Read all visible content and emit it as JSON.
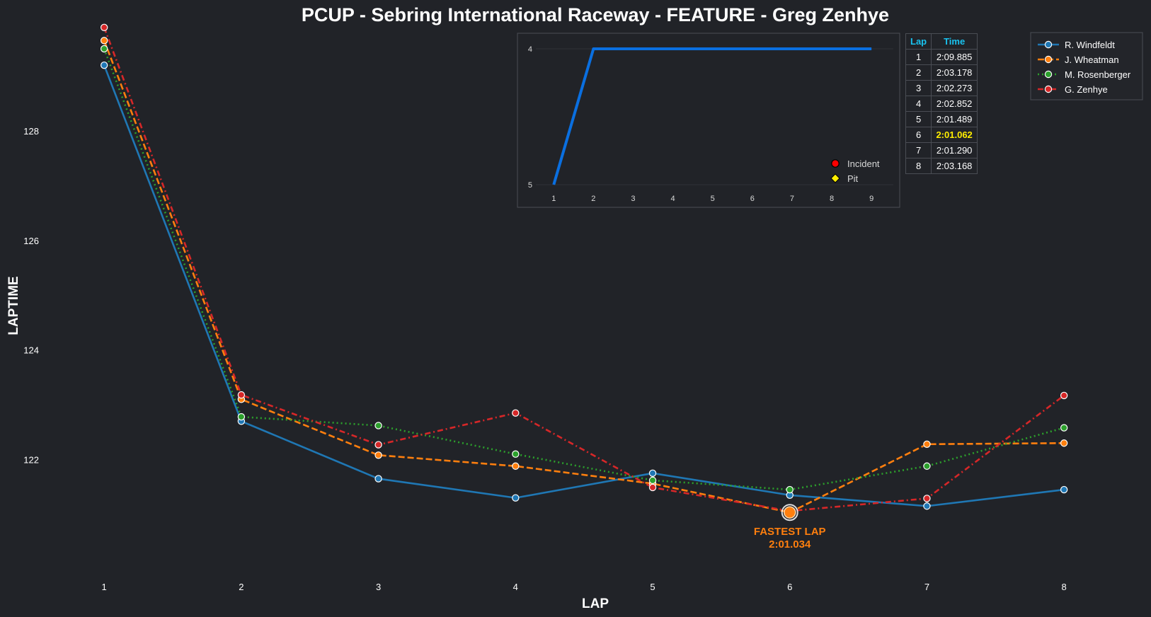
{
  "chart_data": [
    {
      "type": "line",
      "title": "PCUP - Sebring International Raceway - FEATURE - Greg Zenhye",
      "xlabel": "LAP",
      "ylabel": "LAPTIME",
      "x": [
        1,
        2,
        3,
        4,
        5,
        6,
        7,
        8
      ],
      "xlim": [
        0.55,
        8.5
      ],
      "ylim": [
        119.9,
        129.9
      ],
      "yticks": [
        122,
        124,
        126,
        128
      ],
      "grid": false,
      "legend_position": "top-right",
      "series": [
        {
          "name": "R. Windfeldt",
          "color": "#1f77b4",
          "style": "solid",
          "values": [
            129.2,
            122.7,
            121.65,
            121.3,
            121.75,
            121.35,
            121.15,
            121.45
          ]
        },
        {
          "name": "J. Wheatman",
          "color": "#ff7f0e",
          "style": "dashed",
          "values": [
            129.65,
            123.1,
            122.08,
            121.88,
            121.56,
            121.034,
            122.28,
            122.3
          ]
        },
        {
          "name": "M. Rosenberger",
          "color": "#2ca02c",
          "style": "dotted",
          "values": [
            129.5,
            122.78,
            122.62,
            122.1,
            121.62,
            121.45,
            121.88,
            122.58
          ]
        },
        {
          "name": "G. Zenhye",
          "color": "#d62728",
          "style": "dashdot",
          "values": [
            129.89,
            123.18,
            122.27,
            122.85,
            121.49,
            121.06,
            121.29,
            123.17
          ]
        }
      ],
      "annotation": {
        "label": "FASTEST LAP",
        "value": "2:01.034",
        "x": 6,
        "y": 121.034,
        "color": "#ff7f0e"
      }
    },
    {
      "type": "line",
      "title": "",
      "x": [
        1,
        2,
        3,
        4,
        5,
        6,
        7,
        8,
        9
      ],
      "xlim": [
        0.55,
        9.55
      ],
      "ylim": [
        5,
        4
      ],
      "yticks": [
        4,
        5
      ],
      "xticks": [
        1,
        2,
        3,
        4,
        5,
        6,
        7,
        8,
        9
      ],
      "series": [
        {
          "color": "#0a6fe0",
          "values": [
            5,
            4,
            4,
            4,
            4,
            4,
            4,
            4,
            4
          ]
        }
      ],
      "legend": [
        {
          "label": "Incident",
          "marker": "circle",
          "color": "#ff0000"
        },
        {
          "label": "Pit",
          "marker": "diamond",
          "color": "#ffee00"
        }
      ]
    }
  ],
  "lap_table": {
    "headers": [
      "Lap",
      "Time"
    ],
    "rows": [
      {
        "lap": "1",
        "time": "2:09.885"
      },
      {
        "lap": "2",
        "time": "2:03.178"
      },
      {
        "lap": "3",
        "time": "2:02.273"
      },
      {
        "lap": "4",
        "time": "2:02.852"
      },
      {
        "lap": "5",
        "time": "2:01.489"
      },
      {
        "lap": "6",
        "time": "2:01.062",
        "best": true
      },
      {
        "lap": "7",
        "time": "2:01.290"
      },
      {
        "lap": "8",
        "time": "2:03.168"
      }
    ]
  }
}
